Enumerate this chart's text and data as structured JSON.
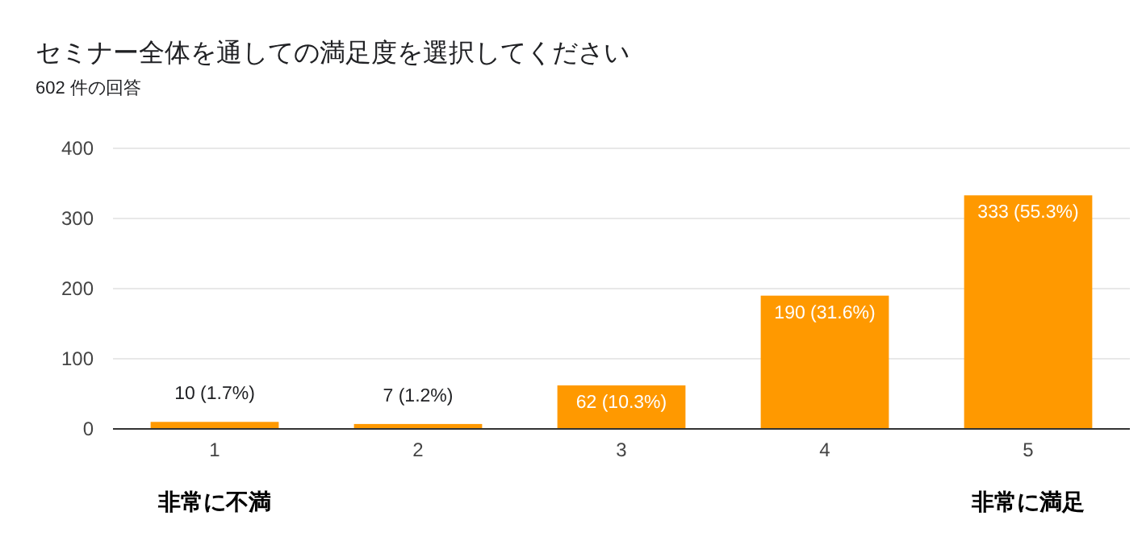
{
  "chart_data": {
    "type": "bar",
    "title": "セミナー全体を通しての満足度を選択してください",
    "subtitle": "602 件の回答",
    "categories": [
      "1",
      "2",
      "3",
      "4",
      "5"
    ],
    "values": [
      10,
      7,
      62,
      190,
      333
    ],
    "value_labels": [
      "10 (1.7%)",
      "7 (1.2%)",
      "62 (10.3%)",
      "190 (31.6%)",
      "333 (55.3%)"
    ],
    "color": "#ff9900",
    "ylim": [
      0,
      400
    ],
    "yticks": [
      0,
      100,
      200,
      300,
      400
    ],
    "grid": "y",
    "annotations": [
      "非常に不満",
      "非常に満足"
    ]
  }
}
